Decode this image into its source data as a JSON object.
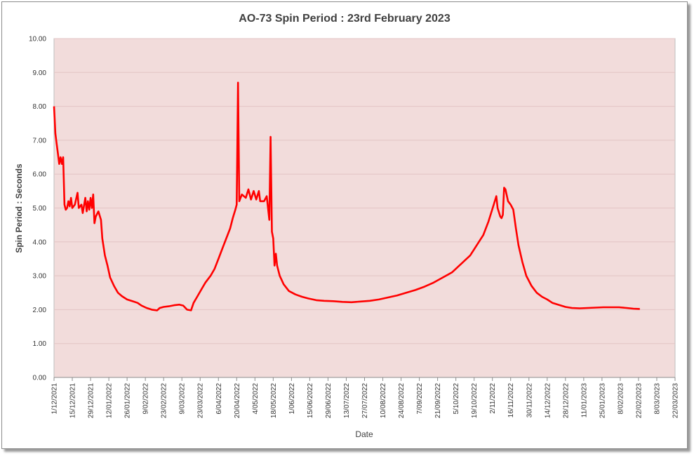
{
  "chart_data": {
    "type": "line",
    "title": "AO-73 Spin Period : 23rd February 2023",
    "xlabel": "Date",
    "ylabel": "Spin Period : Seconds",
    "ylim": [
      0,
      10
    ],
    "y_ticks": [
      "0.00",
      "1.00",
      "2.00",
      "3.00",
      "4.00",
      "5.00",
      "6.00",
      "7.00",
      "8.00",
      "9.00",
      "10.00"
    ],
    "x_range": [
      "2021-12-01",
      "2023-03-22"
    ],
    "x_tick_labels": [
      "1/12/2021",
      "15/12/2021",
      "29/12/2021",
      "12/01/2022",
      "26/01/2022",
      "9/02/2022",
      "23/02/2022",
      "9/03/2022",
      "23/03/2022",
      "6/04/2022",
      "20/04/2022",
      "4/05/2022",
      "18/05/2022",
      "1/06/2022",
      "15/06/2022",
      "29/06/2022",
      "13/07/2022",
      "27/07/2022",
      "10/08/2022",
      "24/08/2022",
      "7/09/2022",
      "21/09/2022",
      "5/10/2022",
      "19/10/2022",
      "2/11/2022",
      "16/11/2022",
      "30/11/2022",
      "14/12/2022",
      "28/12/2022",
      "11/01/2023",
      "25/01/2023",
      "8/02/2023",
      "22/02/2023",
      "8/03/2023",
      "22/03/2023"
    ],
    "grid": true,
    "plot_background": "#f2dcdb",
    "gridline_color": "#e3c4c4",
    "series": [
      {
        "color": "#ff0000",
        "points": [
          [
            "2021-12-01",
            8.0
          ],
          [
            "2021-12-02",
            7.2
          ],
          [
            "2021-12-03",
            6.9
          ],
          [
            "2021-12-04",
            6.6
          ],
          [
            "2021-12-05",
            6.3
          ],
          [
            "2021-12-06",
            6.5
          ],
          [
            "2021-12-07",
            6.3
          ],
          [
            "2021-12-08",
            6.5
          ],
          [
            "2021-12-09",
            5.1
          ],
          [
            "2021-12-10",
            4.95
          ],
          [
            "2021-12-11",
            5.0
          ],
          [
            "2021-12-12",
            5.2
          ],
          [
            "2021-12-13",
            5.05
          ],
          [
            "2021-12-14",
            5.3
          ],
          [
            "2021-12-15",
            5.0
          ],
          [
            "2021-12-17",
            5.1
          ],
          [
            "2021-12-19",
            5.45
          ],
          [
            "2021-12-20",
            5.0
          ],
          [
            "2021-12-22",
            5.1
          ],
          [
            "2021-12-23",
            4.85
          ],
          [
            "2021-12-25",
            5.3
          ],
          [
            "2021-12-26",
            4.9
          ],
          [
            "2021-12-27",
            5.2
          ],
          [
            "2021-12-28",
            4.95
          ],
          [
            "2021-12-29",
            5.3
          ],
          [
            "2021-12-30",
            5.0
          ],
          [
            "2021-12-31",
            5.4
          ],
          [
            "2022-01-01",
            4.55
          ],
          [
            "2022-01-02",
            4.75
          ],
          [
            "2022-01-04",
            4.9
          ],
          [
            "2022-01-06",
            4.65
          ],
          [
            "2022-01-07",
            4.1
          ],
          [
            "2022-01-09",
            3.6
          ],
          [
            "2022-01-11",
            3.3
          ],
          [
            "2022-01-13",
            2.95
          ],
          [
            "2022-01-16",
            2.7
          ],
          [
            "2022-01-19",
            2.5
          ],
          [
            "2022-01-22",
            2.4
          ],
          [
            "2022-01-26",
            2.3
          ],
          [
            "2022-01-30",
            2.25
          ],
          [
            "2022-02-03",
            2.2
          ],
          [
            "2022-02-06",
            2.12
          ],
          [
            "2022-02-10",
            2.05
          ],
          [
            "2022-02-14",
            2.0
          ],
          [
            "2022-02-18",
            1.98
          ],
          [
            "2022-02-20",
            2.05
          ],
          [
            "2022-02-23",
            2.08
          ],
          [
            "2022-02-27",
            2.1
          ],
          [
            "2022-03-03",
            2.13
          ],
          [
            "2022-03-07",
            2.15
          ],
          [
            "2022-03-10",
            2.12
          ],
          [
            "2022-03-13",
            2.0
          ],
          [
            "2022-03-16",
            1.98
          ],
          [
            "2022-03-18",
            2.2
          ],
          [
            "2022-03-21",
            2.4
          ],
          [
            "2022-03-24",
            2.6
          ],
          [
            "2022-03-27",
            2.8
          ],
          [
            "2022-03-31",
            3.0
          ],
          [
            "2022-04-03",
            3.2
          ],
          [
            "2022-04-06",
            3.5
          ],
          [
            "2022-04-09",
            3.8
          ],
          [
            "2022-04-12",
            4.1
          ],
          [
            "2022-04-15",
            4.4
          ],
          [
            "2022-04-17",
            4.7
          ],
          [
            "2022-04-19",
            4.95
          ],
          [
            "2022-04-20",
            5.1
          ],
          [
            "2022-04-21",
            8.7
          ],
          [
            "2022-04-22",
            5.2
          ],
          [
            "2022-04-24",
            5.4
          ],
          [
            "2022-04-27",
            5.3
          ],
          [
            "2022-04-29",
            5.55
          ],
          [
            "2022-05-01",
            5.25
          ],
          [
            "2022-05-03",
            5.5
          ],
          [
            "2022-05-05",
            5.25
          ],
          [
            "2022-05-07",
            5.5
          ],
          [
            "2022-05-08",
            5.2
          ],
          [
            "2022-05-11",
            5.2
          ],
          [
            "2022-05-13",
            5.35
          ],
          [
            "2022-05-15",
            4.65
          ],
          [
            "2022-05-16",
            7.1
          ],
          [
            "2022-05-17",
            4.3
          ],
          [
            "2022-05-18",
            4.1
          ],
          [
            "2022-05-19",
            3.3
          ],
          [
            "2022-05-20",
            3.65
          ],
          [
            "2022-05-21",
            3.3
          ],
          [
            "2022-05-23",
            3.0
          ],
          [
            "2022-05-26",
            2.75
          ],
          [
            "2022-05-30",
            2.55
          ],
          [
            "2022-06-04",
            2.45
          ],
          [
            "2022-06-09",
            2.38
          ],
          [
            "2022-06-14",
            2.33
          ],
          [
            "2022-06-20",
            2.28
          ],
          [
            "2022-06-26",
            2.26
          ],
          [
            "2022-07-03",
            2.25
          ],
          [
            "2022-07-10",
            2.23
          ],
          [
            "2022-07-17",
            2.22
          ],
          [
            "2022-07-24",
            2.24
          ],
          [
            "2022-07-31",
            2.26
          ],
          [
            "2022-08-07",
            2.3
          ],
          [
            "2022-08-14",
            2.36
          ],
          [
            "2022-08-21",
            2.42
          ],
          [
            "2022-08-28",
            2.5
          ],
          [
            "2022-09-04",
            2.58
          ],
          [
            "2022-09-11",
            2.68
          ],
          [
            "2022-09-18",
            2.8
          ],
          [
            "2022-09-25",
            2.95
          ],
          [
            "2022-10-02",
            3.1
          ],
          [
            "2022-10-09",
            3.35
          ],
          [
            "2022-10-16",
            3.6
          ],
          [
            "2022-10-21",
            3.9
          ],
          [
            "2022-10-26",
            4.2
          ],
          [
            "2022-10-30",
            4.6
          ],
          [
            "2022-11-03",
            5.1
          ],
          [
            "2022-11-05",
            5.35
          ],
          [
            "2022-11-06",
            5.0
          ],
          [
            "2022-11-08",
            4.75
          ],
          [
            "2022-11-09",
            4.7
          ],
          [
            "2022-11-10",
            4.8
          ],
          [
            "2022-11-11",
            5.6
          ],
          [
            "2022-11-12",
            5.55
          ],
          [
            "2022-11-14",
            5.2
          ],
          [
            "2022-11-16",
            5.1
          ],
          [
            "2022-11-18",
            4.95
          ],
          [
            "2022-11-20",
            4.4
          ],
          [
            "2022-11-22",
            3.9
          ],
          [
            "2022-11-25",
            3.4
          ],
          [
            "2022-11-28",
            3.0
          ],
          [
            "2022-12-02",
            2.7
          ],
          [
            "2022-12-06",
            2.5
          ],
          [
            "2022-12-10",
            2.38
          ],
          [
            "2022-12-14",
            2.3
          ],
          [
            "2022-12-18",
            2.2
          ],
          [
            "2022-12-23",
            2.14
          ],
          [
            "2022-12-28",
            2.08
          ],
          [
            "2023-01-02",
            2.05
          ],
          [
            "2023-01-08",
            2.04
          ],
          [
            "2023-01-14",
            2.05
          ],
          [
            "2023-01-20",
            2.06
          ],
          [
            "2023-01-26",
            2.07
          ],
          [
            "2023-02-01",
            2.07
          ],
          [
            "2023-02-07",
            2.07
          ],
          [
            "2023-02-13",
            2.05
          ],
          [
            "2023-02-18",
            2.03
          ],
          [
            "2023-02-23",
            2.02
          ]
        ]
      }
    ]
  }
}
